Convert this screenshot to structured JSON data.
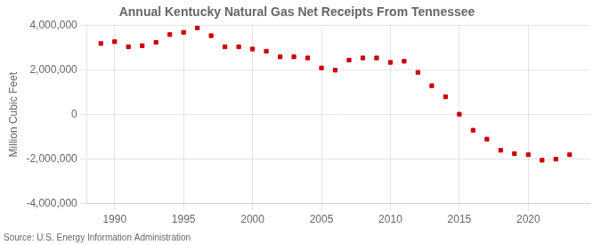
{
  "chart_data": {
    "type": "scatter",
    "title": "Annual Kentucky Natural Gas Net Receipts From Tennessee",
    "ylabel": "Million Cubic Feet",
    "annotations": [
      "Source: U.S. Energy Information Administration"
    ],
    "x": [
      1989,
      1990,
      1991,
      1992,
      1993,
      1994,
      1995,
      1996,
      1997,
      1998,
      1999,
      2000,
      2001,
      2002,
      2003,
      2004,
      2005,
      2006,
      2007,
      2008,
      2009,
      2010,
      2011,
      2012,
      2013,
      2014,
      2015,
      2016,
      2017,
      2018,
      2019,
      2020,
      2021,
      2022,
      2023
    ],
    "values": [
      3200000,
      3280000,
      3050000,
      3100000,
      3250000,
      3600000,
      3700000,
      3900000,
      3550000,
      3050000,
      3050000,
      2950000,
      2850000,
      2600000,
      2600000,
      2550000,
      2100000,
      2000000,
      2450000,
      2550000,
      2550000,
      2350000,
      2400000,
      1900000,
      1300000,
      800000,
      20000,
      -700000,
      -1100000,
      -1600000,
      -1750000,
      -1800000,
      -2050000,
      -2000000,
      -1800000
    ],
    "color": "#cc0000",
    "marker": "square",
    "xlim": [
      1988.0,
      2024.5
    ],
    "xticks": [
      1990,
      1995,
      2000,
      2005,
      2010,
      2015,
      2020
    ],
    "ylim": [
      -4000000,
      4000000
    ],
    "yticks": [
      {
        "value": -4000000,
        "label": "-4,000,000"
      },
      {
        "value": -2000000,
        "label": "-2,000,000"
      },
      0,
      {
        "value": 2000000,
        "label": "2,000,000"
      },
      {
        "value": 4000000,
        "label": "4,000,000"
      }
    ],
    "grid": true
  }
}
